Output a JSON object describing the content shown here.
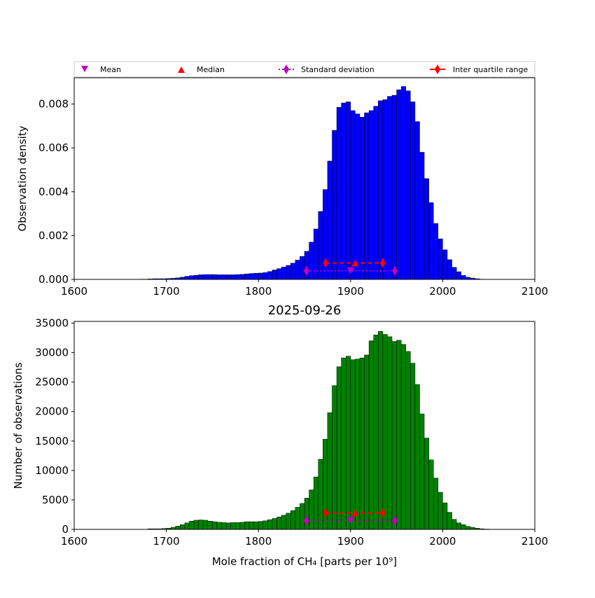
{
  "chart_data": [
    {
      "type": "bar",
      "title": "",
      "xlabel": "",
      "ylabel": "Observation density",
      "xlim": [
        1600,
        2100
      ],
      "ylim": [
        0,
        0.0092
      ],
      "xticks": [
        "1600",
        "1700",
        "1800",
        "1900",
        "2000",
        "2100"
      ],
      "yticks": [
        "0.000",
        "0.002",
        "0.004",
        "0.006",
        "0.008"
      ],
      "bar_color": "#0000ff",
      "bin_start": 1600,
      "bin_width": 5,
      "values": [
        0,
        0,
        0,
        0,
        0,
        0,
        0,
        0,
        0,
        0,
        0,
        0,
        0,
        0,
        1e-05,
        1e-05,
        2e-05,
        3e-05,
        3e-05,
        3e-05,
        4e-05,
        5e-05,
        7e-05,
        0.0001,
        0.00014,
        0.00017,
        0.00019,
        0.00021,
        0.00022,
        0.00022,
        0.00022,
        0.00021,
        0.00021,
        0.00021,
        0.00021,
        0.00022,
        0.00023,
        0.00025,
        0.00027,
        0.00028,
        0.00029,
        0.00031,
        0.00036,
        0.00043,
        0.00049,
        0.00056,
        0.00064,
        0.00074,
        0.00088,
        0.00105,
        0.00128,
        0.0017,
        0.0023,
        0.0031,
        0.0041,
        0.0054,
        0.0068,
        0.00785,
        0.00805,
        0.0081,
        0.0077,
        0.00755,
        0.0074,
        0.0076,
        0.0077,
        0.0079,
        0.00815,
        0.0082,
        0.00835,
        0.0084,
        0.00865,
        0.0088,
        0.0086,
        0.0081,
        0.0072,
        0.0058,
        0.0046,
        0.0035,
        0.00255,
        0.00185,
        0.00135,
        0.0009,
        0.00055,
        0.00035,
        0.00018,
        0.0001,
        6e-05,
        3e-05,
        1e-05,
        0,
        0,
        0,
        0,
        0,
        0,
        0,
        0,
        0,
        0,
        0
      ],
      "markers": {
        "mean": {
          "x": 1900,
          "y": 0.00039
        },
        "median": {
          "x": 1905,
          "y": 0.00075
        },
        "std": {
          "xmin": 1852,
          "xmax": 1948,
          "y": 0.00039
        },
        "iqr": {
          "xmin": 1873,
          "xmax": 1935,
          "y": 0.00075
        }
      }
    },
    {
      "type": "bar",
      "title": "2025-09-26",
      "xlabel": "Mole fraction of CH₄ [parts per 10⁹]",
      "ylabel": "Number of observations",
      "xlim": [
        1600,
        2100
      ],
      "ylim": [
        0,
        35300
      ],
      "xticks": [
        "1600",
        "1700",
        "1800",
        "1900",
        "2000",
        "2100"
      ],
      "yticks": [
        "0",
        "5000",
        "10000",
        "15000",
        "20000",
        "25000",
        "30000",
        "35000"
      ],
      "bar_color": "#008000",
      "bin_start": 1600,
      "bin_width": 5,
      "values": [
        0,
        0,
        0,
        0,
        0,
        0,
        0,
        0,
        0,
        0,
        0,
        0,
        0,
        0,
        0,
        0,
        100,
        100,
        100,
        150,
        200,
        350,
        550,
        800,
        1100,
        1400,
        1550,
        1600,
        1550,
        1400,
        1300,
        1200,
        1150,
        1100,
        1150,
        1150,
        1200,
        1300,
        1300,
        1300,
        1350,
        1450,
        1650,
        1850,
        2100,
        2400,
        2750,
        3200,
        3750,
        4400,
        5300,
        6700,
        8900,
        11900,
        15300,
        19800,
        24400,
        27600,
        29100,
        29400,
        28800,
        28900,
        29100,
        29600,
        32000,
        33000,
        33600,
        33100,
        32700,
        31900,
        32100,
        31400,
        30200,
        28200,
        24600,
        19600,
        15500,
        11800,
        8700,
        6300,
        4500,
        2900,
        1700,
        1100,
        800,
        500,
        350,
        200,
        100,
        50,
        0,
        0,
        0,
        0,
        0,
        0,
        0,
        0,
        0,
        0
      ],
      "markers": {
        "mean": {
          "x": 1900,
          "y": 1500
        },
        "median": {
          "x": 1905,
          "y": 2800
        },
        "std": {
          "xmin": 1852,
          "xmax": 1948,
          "y": 1500
        },
        "iqr": {
          "xmin": 1873,
          "xmax": 1935,
          "y": 2800
        }
      }
    }
  ],
  "legend": {
    "placement": "top",
    "entries": [
      {
        "label": "Mean",
        "marker": "triangle-down",
        "color": "#bf00bf"
      },
      {
        "label": "Median",
        "marker": "triangle-up",
        "color": "#ff0000"
      },
      {
        "label": "Standard deviation",
        "marker": "diamond",
        "color": "#bf00bf"
      },
      {
        "label": "Inter quartile range",
        "marker": "diamond",
        "color": "#ff0000"
      }
    ]
  }
}
